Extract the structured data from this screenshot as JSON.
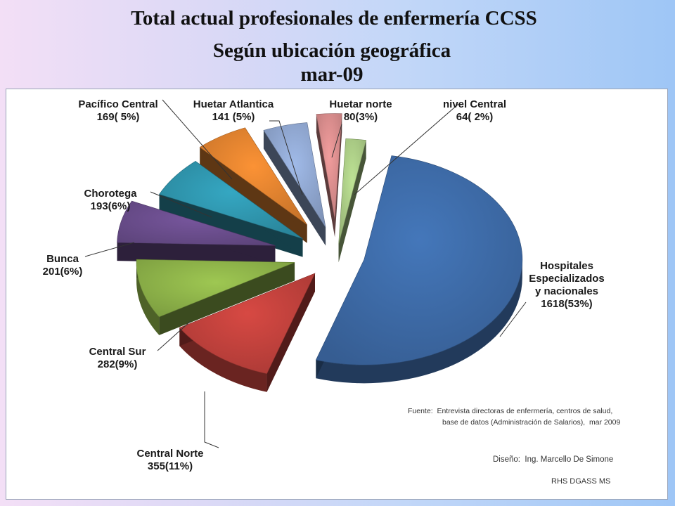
{
  "header": {
    "title": "Total actual profesionales de enfermería CCSS",
    "subtitle": "Según ubicación geográfica",
    "date": "mar-09"
  },
  "chart_data": {
    "type": "pie",
    "title": "Total actual profesionales de enfermería CCSS",
    "subtitle": "Según ubicación geográfica mar-09",
    "grid": false,
    "legend": "none",
    "slices": [
      {
        "name": "Hospitales Especializados y nacionales",
        "value": 1618,
        "percent": 53,
        "label": [
          "Hospitales",
          "Especializados",
          "y nacionales",
          "1618(53%)"
        ],
        "color": "#3d6aa6"
      },
      {
        "name": "Central Norte",
        "value": 355,
        "percent": 11,
        "label": [
          "Central Norte",
          "355(11%)"
        ],
        "color": "#c0413c"
      },
      {
        "name": "Central Sur",
        "value": 282,
        "percent": 9,
        "label": [
          "Central Sur",
          "282(9%)"
        ],
        "color": "#8db249"
      },
      {
        "name": "Bunca",
        "value": 201,
        "percent": 6,
        "label": [
          "Bunca",
          "201(6%)"
        ],
        "color": "#6a4d8c"
      },
      {
        "name": "Chorotega",
        "value": 193,
        "percent": 6,
        "label": [
          "Chorotega",
          "193(6%)"
        ],
        "color": "#2f95ad"
      },
      {
        "name": "Pacífico Central",
        "value": 169,
        "percent": 5,
        "label": [
          "Pacífico Central",
          "169( 5%)"
        ],
        "color": "#e0822f"
      },
      {
        "name": "Huetar Atlantica",
        "value": 141,
        "percent": 5,
        "label": [
          "Huetar Atlantica",
          "141 (5%)"
        ],
        "color": "#8fa6cf"
      },
      {
        "name": "Huetar norte",
        "value": 80,
        "percent": 3,
        "label": [
          "Huetar norte",
          "80(3%)"
        ],
        "color": "#d88c8c"
      },
      {
        "name": "nivel Central",
        "value": 64,
        "percent": 2,
        "label": [
          "nivel Central",
          "64( 2%)"
        ],
        "color": "#aacb85"
      }
    ]
  },
  "footer": {
    "source_line1": "Fuente:  Entrevista directoras de enfermería, centros de salud,",
    "source_line2": "base de datos (Administración de Salarios),  mar 2009",
    "design": "Diseño:  Ing. Marcello De Simone",
    "org": "RHS DGASS MS"
  }
}
